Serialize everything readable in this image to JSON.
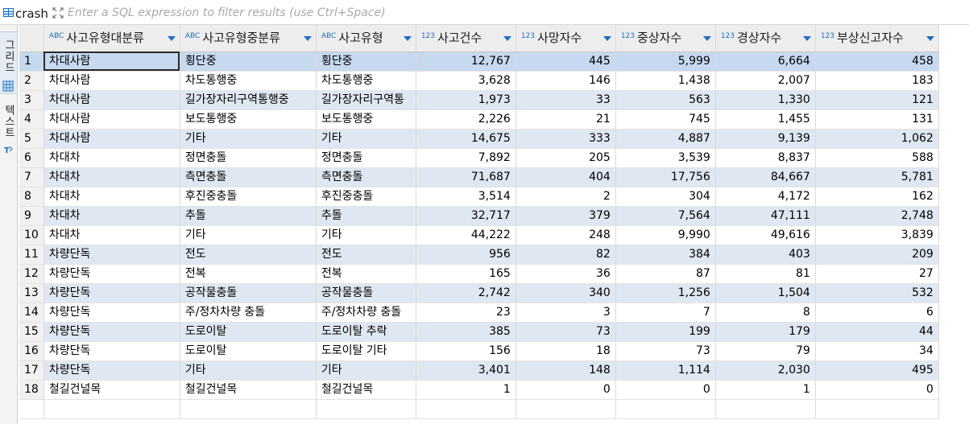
{
  "filter": {
    "entity_name": "crash",
    "placeholder": "Enter a SQL expression to filter results (use Ctrl+Space)"
  },
  "side_tabs": {
    "grid_label": "그리드",
    "text_label": "텍스트"
  },
  "columns": [
    {
      "type": "ABC",
      "title": "사고유형대분류",
      "align": "left"
    },
    {
      "type": "ABC",
      "title": "사고유형중분류",
      "align": "left"
    },
    {
      "type": "ABC",
      "title": "사고유형",
      "align": "left"
    },
    {
      "type": "123",
      "title": "사고건수",
      "align": "right"
    },
    {
      "type": "123",
      "title": "사망자수",
      "align": "right"
    },
    {
      "type": "123",
      "title": "중상자수",
      "align": "right"
    },
    {
      "type": "123",
      "title": "경상자수",
      "align": "right"
    },
    {
      "type": "123",
      "title": "부상신고자수",
      "align": "right"
    }
  ],
  "rows": [
    [
      "1",
      "차대사람",
      "횡단중",
      "횡단중",
      "12,767",
      "445",
      "5,999",
      "6,664",
      "458"
    ],
    [
      "2",
      "차대사람",
      "차도통행중",
      "차도통행중",
      "3,628",
      "146",
      "1,438",
      "2,007",
      "183"
    ],
    [
      "3",
      "차대사람",
      "길가장자리구역통행중",
      "길가장자리구역통",
      "1,973",
      "33",
      "563",
      "1,330",
      "121"
    ],
    [
      "4",
      "차대사람",
      "보도통행중",
      "보도통행중",
      "2,226",
      "21",
      "745",
      "1,455",
      "131"
    ],
    [
      "5",
      "차대사람",
      "기타",
      "기타",
      "14,675",
      "333",
      "4,887",
      "9,139",
      "1,062"
    ],
    [
      "6",
      "차대차",
      "정면충돌",
      "정면충돌",
      "7,892",
      "205",
      "3,539",
      "8,837",
      "588"
    ],
    [
      "7",
      "차대차",
      "측면충돌",
      "측면충돌",
      "71,687",
      "404",
      "17,756",
      "84,667",
      "5,781"
    ],
    [
      "8",
      "차대차",
      "후진중충돌",
      "후진중충돌",
      "3,514",
      "2",
      "304",
      "4,172",
      "162"
    ],
    [
      "9",
      "차대차",
      "추돌",
      "추돌",
      "32,717",
      "379",
      "7,564",
      "47,111",
      "2,748"
    ],
    [
      "10",
      "차대차",
      "기타",
      "기타",
      "44,222",
      "248",
      "9,990",
      "49,616",
      "3,839"
    ],
    [
      "11",
      "차량단독",
      "전도",
      "전도",
      "956",
      "82",
      "384",
      "403",
      "209"
    ],
    [
      "12",
      "차량단독",
      "전복",
      "전복",
      "165",
      "36",
      "87",
      "81",
      "27"
    ],
    [
      "13",
      "차량단독",
      "공작물충돌",
      "공작물충돌",
      "2,742",
      "340",
      "1,256",
      "1,504",
      "532"
    ],
    [
      "14",
      "차량단독",
      "주/정차차량 충돌",
      "주/정차차량 충돌",
      "23",
      "3",
      "7",
      "8",
      "6"
    ],
    [
      "15",
      "차량단독",
      "도로이탈",
      "도로이탈 추락",
      "385",
      "73",
      "199",
      "179",
      "44"
    ],
    [
      "16",
      "차량단독",
      "도로이탈",
      "도로이탈 기타",
      "156",
      "18",
      "73",
      "79",
      "34"
    ],
    [
      "17",
      "차량단독",
      "기타",
      "기타",
      "3,401",
      "148",
      "1,114",
      "2,030",
      "495"
    ],
    [
      "18",
      "철길건널목",
      "철길건널목",
      "철길건널목",
      "1",
      "0",
      "0",
      "1",
      "0"
    ]
  ],
  "selected_row": 0
}
